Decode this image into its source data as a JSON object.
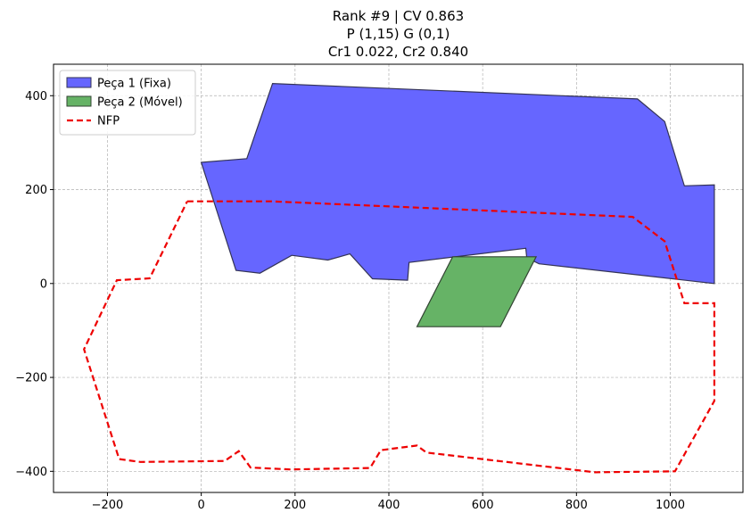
{
  "chart_data": {
    "type": "polygon",
    "title_lines": [
      "Rank #9 | CV 0.863",
      "P (1,15) G (0,1)",
      "Cr1 0.022, Cr2 0.840"
    ],
    "xlabel": "",
    "ylabel": "",
    "xlim": [
      -315,
      1155
    ],
    "ylim": [
      -445,
      467
    ],
    "x_ticks": [
      -200,
      0,
      200,
      400,
      600,
      800,
      1000
    ],
    "y_ticks": [
      -400,
      -200,
      0,
      200,
      400
    ],
    "x_tick_labels": [
      "−200",
      "0",
      "200",
      "400",
      "600",
      "800",
      "1000"
    ],
    "y_tick_labels": [
      "−400",
      "−200",
      "0",
      "200",
      "400"
    ],
    "grid": true,
    "legend_position": "top-left",
    "series": [
      {
        "name": "Peça 1 (Fixa)",
        "kind": "polygon",
        "fill": "#6666ff",
        "stroke": "#333355",
        "points": [
          [
            0,
            258
          ],
          [
            97,
            266
          ],
          [
            152,
            426
          ],
          [
            930,
            393
          ],
          [
            988,
            345
          ],
          [
            1030,
            208
          ],
          [
            1094,
            210
          ],
          [
            1094,
            0
          ],
          [
            720,
            42
          ],
          [
            694,
            55
          ],
          [
            692,
            75
          ],
          [
            443,
            45
          ],
          [
            440,
            7
          ],
          [
            365,
            10
          ],
          [
            317,
            63
          ],
          [
            270,
            50
          ],
          [
            193,
            60
          ],
          [
            125,
            22
          ],
          [
            74,
            28
          ]
        ]
      },
      {
        "name": "Peça 2 (Móvel)",
        "kind": "polygon",
        "fill": "#66b366",
        "stroke": "#334433",
        "points": [
          [
            460,
            -92
          ],
          [
            638,
            -92
          ],
          [
            714,
            57
          ],
          [
            536,
            57
          ]
        ]
      },
      {
        "name": "NFP",
        "kind": "dashed-line",
        "stroke": "#ee0000",
        "points": [
          [
            -30,
            175
          ],
          [
            150,
            175
          ],
          [
            920,
            142
          ],
          [
            988,
            90
          ],
          [
            1030,
            -42
          ],
          [
            1094,
            -42
          ],
          [
            1094,
            -250
          ],
          [
            1010,
            -400
          ],
          [
            840,
            -402
          ],
          [
            480,
            -360
          ],
          [
            460,
            -345
          ],
          [
            383,
            -355
          ],
          [
            360,
            -393
          ],
          [
            190,
            -396
          ],
          [
            105,
            -392
          ],
          [
            80,
            -357
          ],
          [
            50,
            -378
          ],
          [
            -130,
            -380
          ],
          [
            -175,
            -374
          ],
          [
            -250,
            -140
          ],
          [
            -180,
            7
          ],
          [
            -110,
            11
          ],
          [
            -30,
            175
          ]
        ]
      }
    ]
  }
}
